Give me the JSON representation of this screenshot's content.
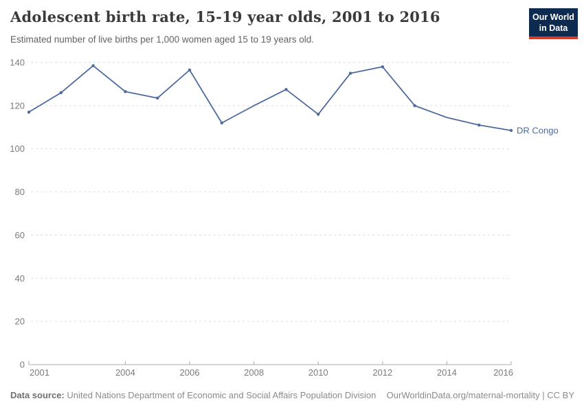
{
  "header": {
    "title": "Adolescent birth rate, 15-19 year olds, 2001 to 2016",
    "subtitle": "Estimated number of live births per 1,000 women aged 15 to 19 years old.",
    "logo": {
      "line1": "Our World",
      "line2": "in Data"
    }
  },
  "chart_data": {
    "type": "line",
    "title": "Adolescent birth rate, 15-19 year olds, 2001 to 2016",
    "xlabel": "",
    "ylabel": "Live births per 1,000 women aged 15 to 19",
    "x": [
      2001,
      2002,
      2003,
      2004,
      2005,
      2006,
      2007,
      2008,
      2009,
      2010,
      2011,
      2012,
      2013,
      2014,
      2015,
      2016
    ],
    "series": [
      {
        "name": "DR Congo",
        "color": "#4C6A9F",
        "values": [
          117,
          126,
          138.5,
          126.5,
          123.5,
          136.5,
          112,
          120,
          127.5,
          116,
          135,
          138,
          120,
          114.5,
          111,
          108.5
        ],
        "marker_years": [
          2001,
          2002,
          2003,
          2004,
          2005,
          2006,
          2007,
          2009,
          2010,
          2011,
          2012,
          2013,
          2015,
          2016
        ]
      }
    ],
    "xlim": [
      2001,
      2016
    ],
    "ylim": [
      0,
      140
    ],
    "xticks": [
      2001,
      2004,
      2006,
      2008,
      2010,
      2012,
      2014,
      2016
    ],
    "yticks": [
      0,
      20,
      40,
      60,
      80,
      100,
      120,
      140
    ],
    "grid": "horizontal-dashed",
    "legend_position": "line-end-label"
  },
  "footer": {
    "datasource_label": "Data source:",
    "datasource_text": " United Nations Department of Economic and Social Affairs Population Division",
    "attribution": "OurWorldinData.org/maternal-mortality | CC BY"
  },
  "colors": {
    "series_line": "#4C6A9F",
    "logo_navy": "#0d2b51",
    "logo_red": "#d23a27",
    "title_text": "#3a3a3a",
    "subtitle_text": "#636363",
    "axis_label_text": "#7b7b7b",
    "gridline": "#dcdcdc",
    "axis_line": "#a9a9a9",
    "footer_text": "#8a8a8a"
  }
}
